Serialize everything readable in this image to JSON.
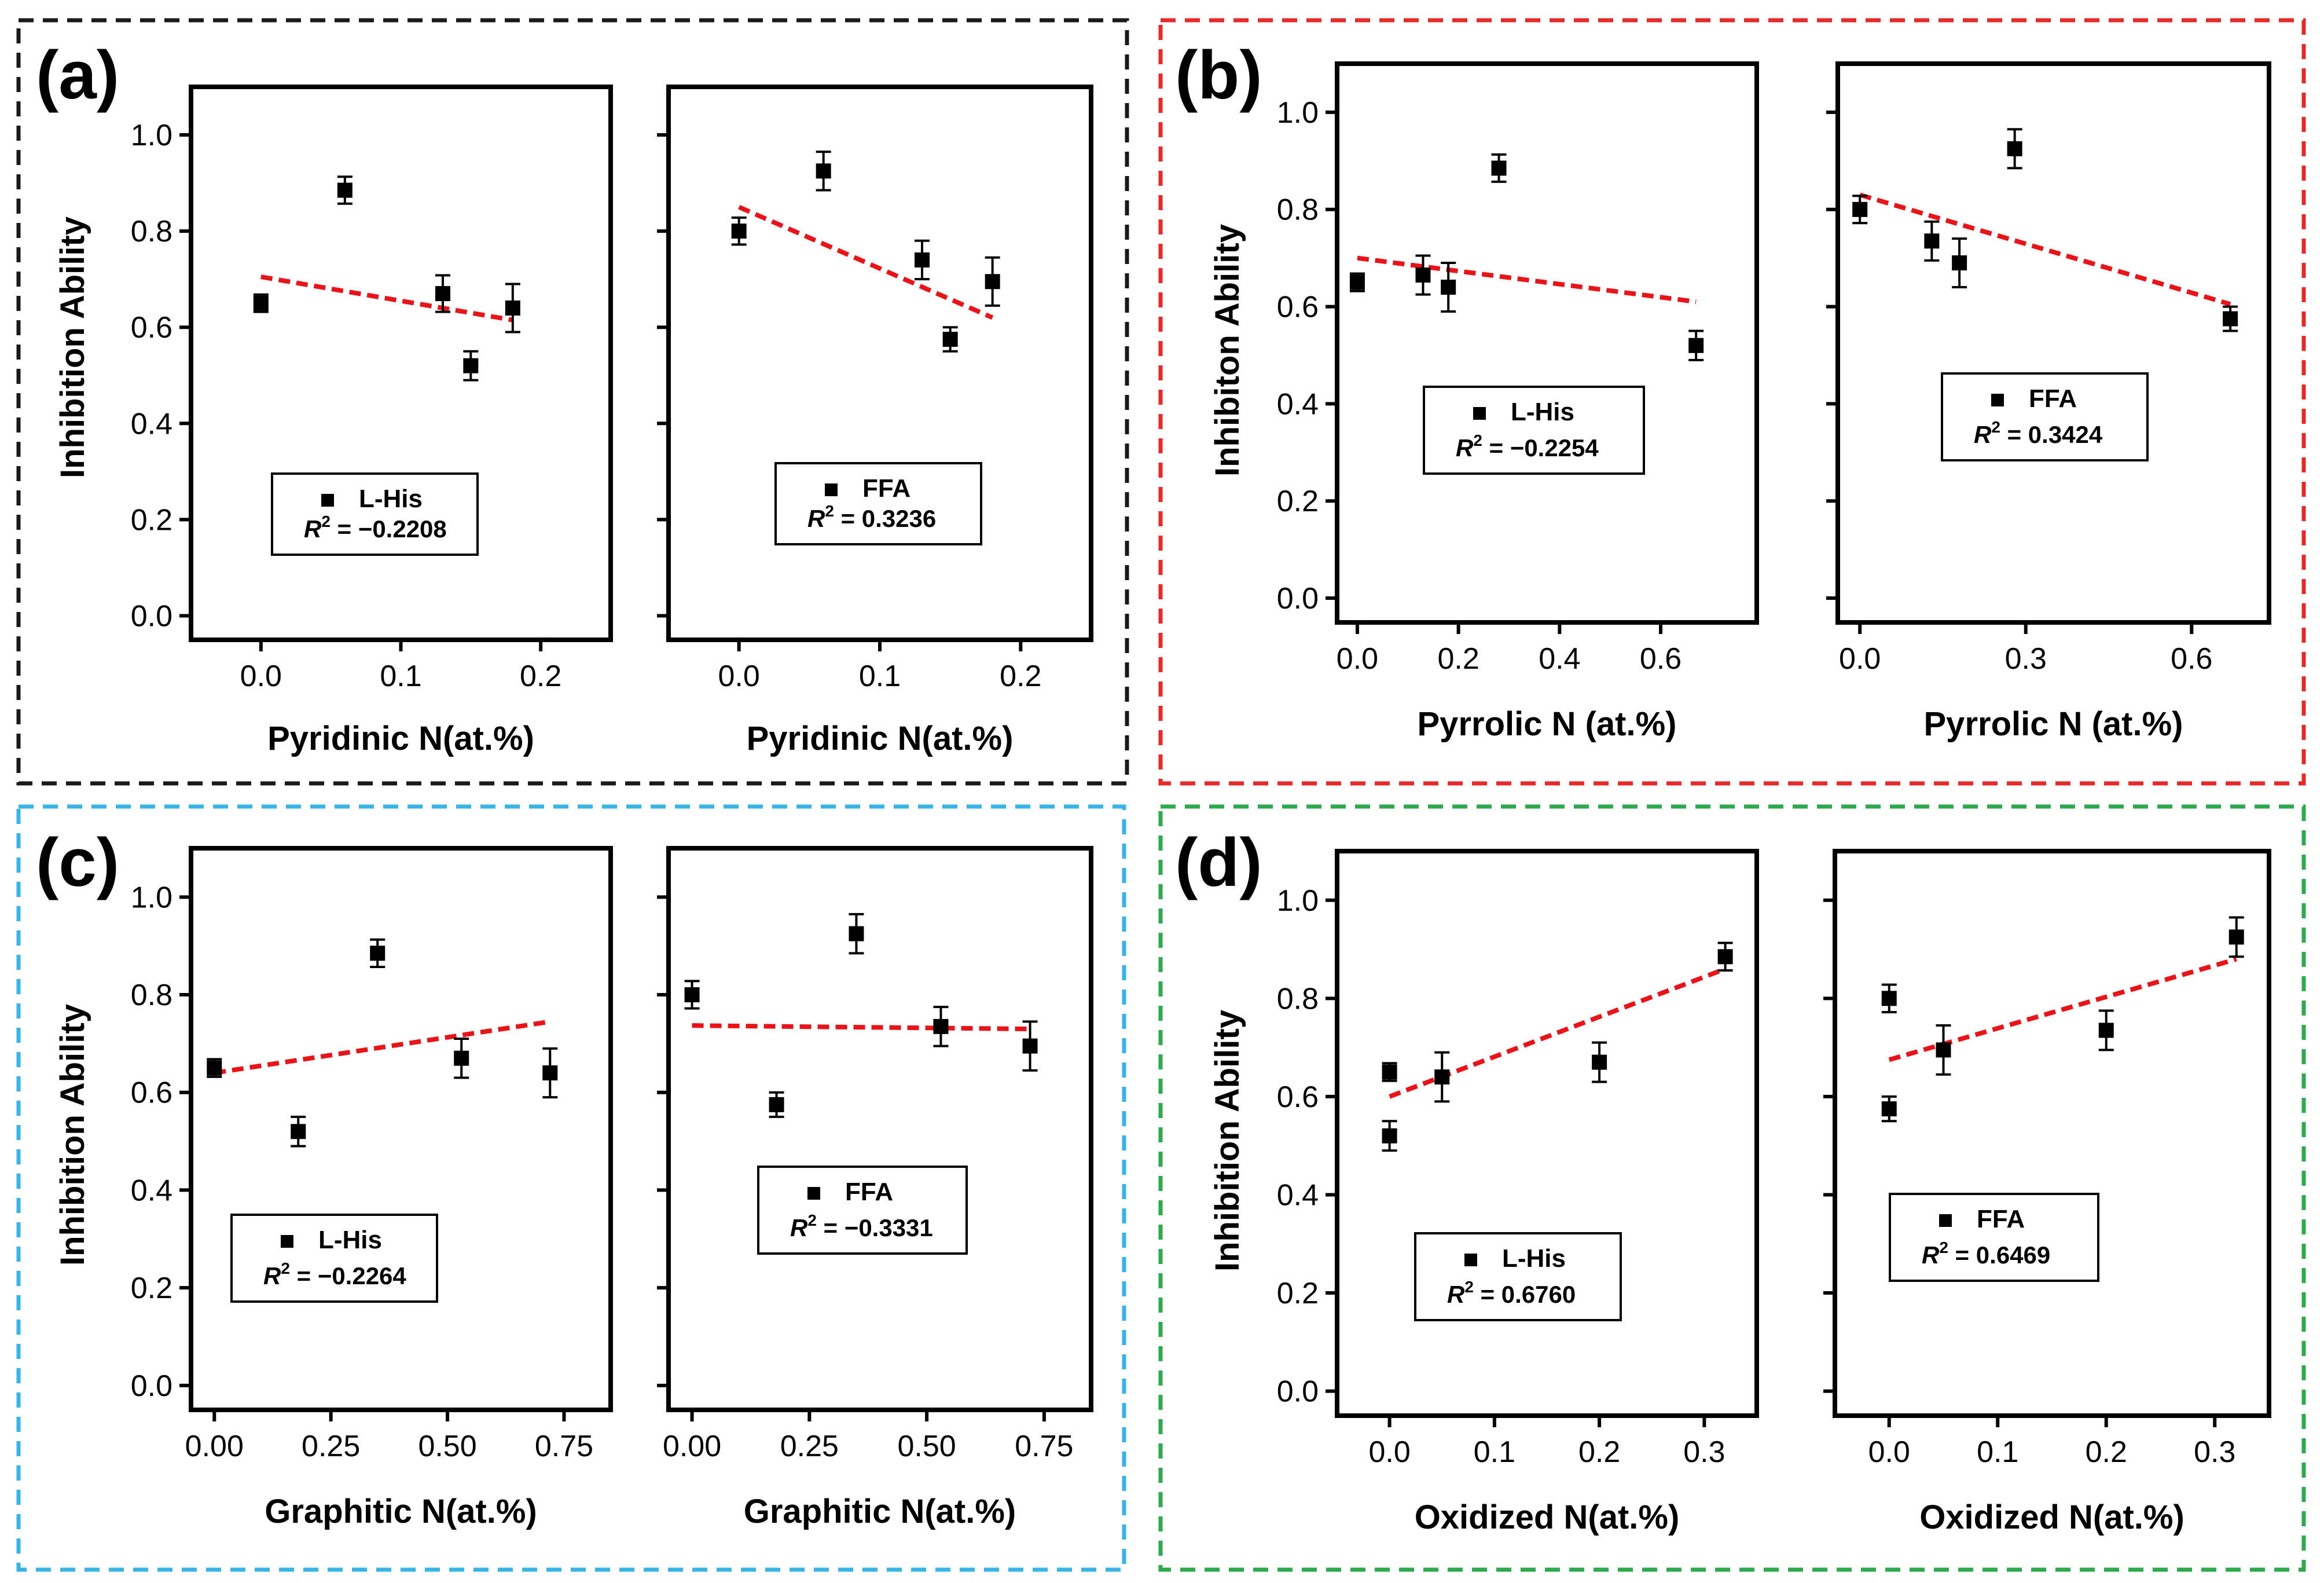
{
  "figure": {
    "y_axis_title": "Inhibition Ability",
    "y_axis_title_b": "Inhibiton Ability",
    "colors": {
      "frame_a": "#1a1a1a",
      "frame_b": "#e52a2a",
      "frame_c": "#3ab4e6",
      "frame_d": "#2eaa4e",
      "fit_line": "#e8141a",
      "marker": "#000000"
    }
  },
  "panels": [
    {
      "letter": "(a)",
      "xlabel": "Pyridinic N(at.%)",
      "ylabel": "Inhibition Ability"
    },
    {
      "letter": "(b)",
      "xlabel": "Pyrrolic N (at.%)",
      "ylabel": "Inhibiton Ability"
    },
    {
      "letter": "(c)",
      "xlabel": "Graphitic N(at.%)",
      "ylabel": "Inhibition Ability"
    },
    {
      "letter": "(d)",
      "xlabel": "Oxidized N(at.%)",
      "ylabel": "Inhibition Ability"
    }
  ],
  "chart_data": [
    {
      "type": "scatter",
      "panel": "(a)",
      "series": "L-His",
      "xlabel": "Pyridinic N(at.%)",
      "ylabel": "Inhibition Ability",
      "xlim": [
        -0.05,
        0.25
      ],
      "xticks": [
        0.0,
        0.1,
        0.2
      ],
      "xtick_labels": [
        "0.0",
        "0.1",
        "0.2"
      ],
      "ylim": [
        -0.05,
        1.1
      ],
      "yticks": [
        0.0,
        0.2,
        0.4,
        0.6,
        0.8,
        1.0
      ],
      "ytick_labels": [
        "0.0",
        "0.2",
        "0.4",
        "0.6",
        "0.8",
        "1.0"
      ],
      "x": [
        0.0,
        0.06,
        0.13,
        0.15,
        0.18
      ],
      "y": [
        0.65,
        0.885,
        0.67,
        0.52,
        0.64
      ],
      "yerr": [
        0.018,
        0.028,
        0.038,
        0.03,
        0.05
      ],
      "fit": {
        "x": [
          0.0,
          0.18
        ],
        "y": [
          0.705,
          0.615
        ]
      },
      "legend": {
        "label": "L-His",
        "r2_label": "R",
        "r2_value": " = −0.2208"
      }
    },
    {
      "type": "scatter",
      "panel": "(a)",
      "series": "FFA",
      "xlabel": "Pyridinic N(at.%)",
      "ylabel": "",
      "xlim": [
        -0.05,
        0.25
      ],
      "xticks": [
        0.0,
        0.1,
        0.2
      ],
      "xtick_labels": [
        "0.0",
        "0.1",
        "0.2"
      ],
      "ylim": [
        -0.05,
        1.1
      ],
      "yticks": [
        0.0,
        0.2,
        0.4,
        0.6,
        0.8,
        1.0
      ],
      "x": [
        0.0,
        0.06,
        0.13,
        0.15,
        0.18
      ],
      "y": [
        0.8,
        0.925,
        0.74,
        0.575,
        0.695
      ],
      "yerr": [
        0.028,
        0.04,
        0.04,
        0.025,
        0.05
      ],
      "fit": {
        "x": [
          0.0,
          0.18
        ],
        "y": [
          0.85,
          0.62
        ]
      },
      "legend": {
        "label": "FFA",
        "r2_label": "R",
        "r2_value": " = 0.3236"
      }
    },
    {
      "type": "scatter",
      "panel": "(b)",
      "series": "L-His",
      "xlabel": "Pyrrolic N (at.%)",
      "ylabel": "Inhibiton Ability",
      "xlim": [
        -0.04,
        0.79
      ],
      "xticks": [
        0.0,
        0.2,
        0.4,
        0.6
      ],
      "xtick_labels": [
        "0.0",
        "0.2",
        "0.4",
        "0.6"
      ],
      "ylim": [
        -0.05,
        1.1
      ],
      "yticks": [
        0.0,
        0.2,
        0.4,
        0.6,
        0.8,
        1.0
      ],
      "ytick_labels": [
        "0.0",
        "0.2",
        "0.4",
        "0.6",
        "0.8",
        "1.0"
      ],
      "x": [
        0.0,
        0.13,
        0.18,
        0.28,
        0.67
      ],
      "y": [
        0.65,
        0.665,
        0.64,
        0.885,
        0.52
      ],
      "yerr": [
        0.018,
        0.04,
        0.05,
        0.028,
        0.03
      ],
      "fit": {
        "x": [
          0.0,
          0.67
        ],
        "y": [
          0.7,
          0.61
        ]
      },
      "legend": {
        "label": "L-His",
        "r2_label": "R",
        "r2_value": " = −0.2254"
      }
    },
    {
      "type": "scatter",
      "panel": "(b)",
      "series": "FFA",
      "xlabel": "Pyrrolic N (at.%)",
      "ylabel": "",
      "xlim": [
        -0.04,
        0.74
      ],
      "xticks": [
        0.0,
        0.3,
        0.6
      ],
      "xtick_labels": [
        "0.0",
        "0.3",
        "0.6"
      ],
      "ylim": [
        -0.05,
        1.1
      ],
      "yticks": [
        0.0,
        0.2,
        0.4,
        0.6,
        0.8,
        1.0
      ],
      "x": [
        0.0,
        0.13,
        0.18,
        0.28,
        0.67
      ],
      "y": [
        0.8,
        0.735,
        0.69,
        0.925,
        0.575
      ],
      "yerr": [
        0.028,
        0.04,
        0.05,
        0.04,
        0.025
      ],
      "fit": {
        "x": [
          0.0,
          0.67
        ],
        "y": [
          0.83,
          0.605
        ]
      },
      "legend": {
        "label": "FFA",
        "r2_label": "R",
        "r2_value": " = 0.3424"
      }
    },
    {
      "type": "scatter",
      "panel": "(c)",
      "series": "L-His",
      "xlabel": "Graphitic N(at.%)",
      "ylabel": "Inhibition Ability",
      "xlim": [
        -0.05,
        0.85
      ],
      "xticks": [
        0.0,
        0.25,
        0.5,
        0.75
      ],
      "xtick_labels": [
        "0.00",
        "0.25",
        "0.50",
        "0.75"
      ],
      "ylim": [
        -0.05,
        1.1
      ],
      "yticks": [
        0.0,
        0.2,
        0.4,
        0.6,
        0.8,
        1.0
      ],
      "ytick_labels": [
        "0.0",
        "0.2",
        "0.4",
        "0.6",
        "0.8",
        "1.0"
      ],
      "x": [
        0.0,
        0.18,
        0.35,
        0.53,
        0.72
      ],
      "y": [
        0.65,
        0.52,
        0.885,
        0.67,
        0.64
      ],
      "yerr": [
        0.018,
        0.03,
        0.028,
        0.04,
        0.05
      ],
      "fit": {
        "x": [
          0.0,
          0.72
        ],
        "y": [
          0.64,
          0.745
        ]
      },
      "legend": {
        "label": "L-His",
        "r2_label": "R",
        "r2_value": " = −0.2264"
      }
    },
    {
      "type": "scatter",
      "panel": "(c)",
      "series": "FFA",
      "xlabel": "Graphitic N(at.%)",
      "ylabel": "",
      "xlim": [
        -0.05,
        0.85
      ],
      "xticks": [
        0.0,
        0.25,
        0.5,
        0.75
      ],
      "xtick_labels": [
        "0.00",
        "0.25",
        "0.50",
        "0.75"
      ],
      "ylim": [
        -0.05,
        1.1
      ],
      "yticks": [
        0.0,
        0.2,
        0.4,
        0.6,
        0.8,
        1.0
      ],
      "x": [
        0.0,
        0.18,
        0.35,
        0.53,
        0.72
      ],
      "y": [
        0.8,
        0.575,
        0.925,
        0.735,
        0.695
      ],
      "yerr": [
        0.028,
        0.025,
        0.04,
        0.04,
        0.05
      ],
      "fit": {
        "x": [
          0.0,
          0.72
        ],
        "y": [
          0.737,
          0.73
        ]
      },
      "legend": {
        "label": "FFA",
        "r2_label": "R",
        "r2_value": " = −0.3331"
      }
    },
    {
      "type": "scatter",
      "panel": "(d)",
      "series": "L-His",
      "xlabel": "Oxidized N(at.%)",
      "ylabel": "Inhibition Ability",
      "xlim": [
        -0.05,
        0.35
      ],
      "xticks": [
        0.0,
        0.1,
        0.2,
        0.3
      ],
      "xtick_labels": [
        "0.0",
        "0.1",
        "0.2",
        "0.3"
      ],
      "ylim": [
        -0.05,
        1.1
      ],
      "yticks": [
        0.0,
        0.2,
        0.4,
        0.6,
        0.8,
        1.0
      ],
      "ytick_labels": [
        "0.0",
        "0.2",
        "0.4",
        "0.6",
        "0.8",
        "1.0"
      ],
      "x": [
        0.0,
        0.0,
        0.05,
        0.2,
        0.32
      ],
      "y": [
        0.65,
        0.52,
        0.64,
        0.67,
        0.885
      ],
      "yerr": [
        0.018,
        0.03,
        0.05,
        0.04,
        0.028
      ],
      "fit": {
        "x": [
          0.0,
          0.32
        ],
        "y": [
          0.6,
          0.86
        ]
      },
      "legend": {
        "label": "L-His",
        "r2_label": "R",
        "r2_value": " = 0.6760"
      }
    },
    {
      "type": "scatter",
      "panel": "(d)",
      "series": "FFA",
      "xlabel": "Oxidized N(at.%)",
      "ylabel": "",
      "xlim": [
        -0.05,
        0.35
      ],
      "xticks": [
        0.0,
        0.1,
        0.2,
        0.3
      ],
      "xtick_labels": [
        "0.0",
        "0.1",
        "0.2",
        "0.3"
      ],
      "ylim": [
        -0.05,
        1.1
      ],
      "yticks": [
        0.0,
        0.2,
        0.4,
        0.6,
        0.8,
        1.0
      ],
      "x": [
        0.0,
        0.0,
        0.05,
        0.2,
        0.32
      ],
      "y": [
        0.8,
        0.575,
        0.695,
        0.735,
        0.925
      ],
      "yerr": [
        0.028,
        0.025,
        0.05,
        0.04,
        0.04
      ],
      "fit": {
        "x": [
          0.0,
          0.32
        ],
        "y": [
          0.675,
          0.88
        ]
      },
      "legend": {
        "label": "FFA",
        "r2_label": "R",
        "r2_value": " = 0.6469"
      }
    }
  ]
}
